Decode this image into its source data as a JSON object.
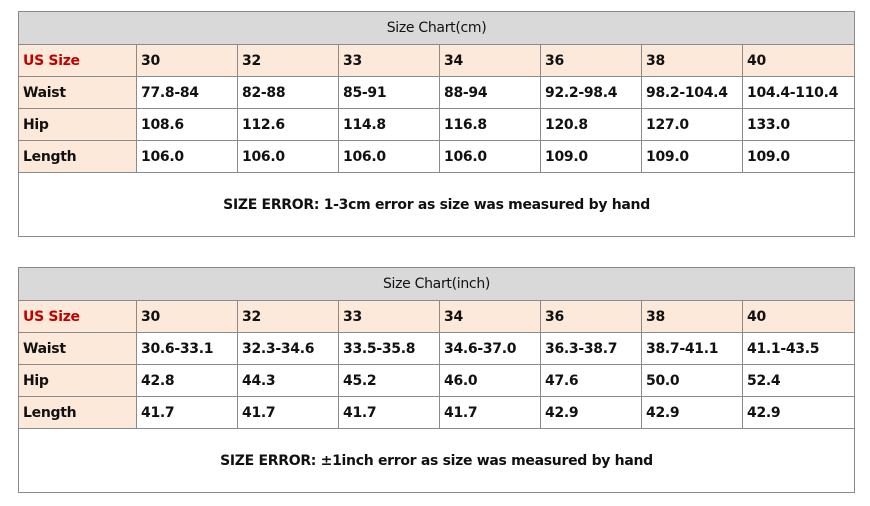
{
  "tables": [
    {
      "title": "Size Chart(cm)",
      "header": [
        "US Size",
        "30",
        "32",
        "33",
        "34",
        "36",
        "38",
        "40"
      ],
      "rows": [
        [
          "Waist",
          "77.8-84",
          "82-88",
          "85-91",
          "88-94",
          "92.2-98.4",
          "98.2-104.4",
          "104.4-110.4"
        ],
        [
          "Hip",
          "108.6",
          "112.6",
          "114.8",
          "116.8",
          "120.8",
          "127.0",
          "133.0"
        ],
        [
          "Length",
          "106.0",
          "106.0",
          "106.0",
          "106.0",
          "109.0",
          "109.0",
          "109.0"
        ]
      ],
      "note": "SIZE ERROR: 1-3cm error as size was measured by hand"
    },
    {
      "title": "Size Chart(inch)",
      "header": [
        "US Size",
        "30",
        "32",
        "33",
        "34",
        "36",
        "38",
        "40"
      ],
      "rows": [
        [
          "Waist",
          "30.6-33.1",
          "32.3-34.6",
          "33.5-35.8",
          "34.6-37.0",
          "36.3-38.7",
          "38.7-41.1",
          "41.1-43.5"
        ],
        [
          "Hip",
          "42.8",
          "44.3",
          "45.2",
          "46.0",
          "47.6",
          "50.0",
          "52.4"
        ],
        [
          "Length",
          "41.7",
          "41.7",
          "41.7",
          "41.7",
          "42.9",
          "42.9",
          "42.9"
        ]
      ],
      "note": "SIZE ERROR: ±1inch error as size was measured by hand"
    }
  ]
}
